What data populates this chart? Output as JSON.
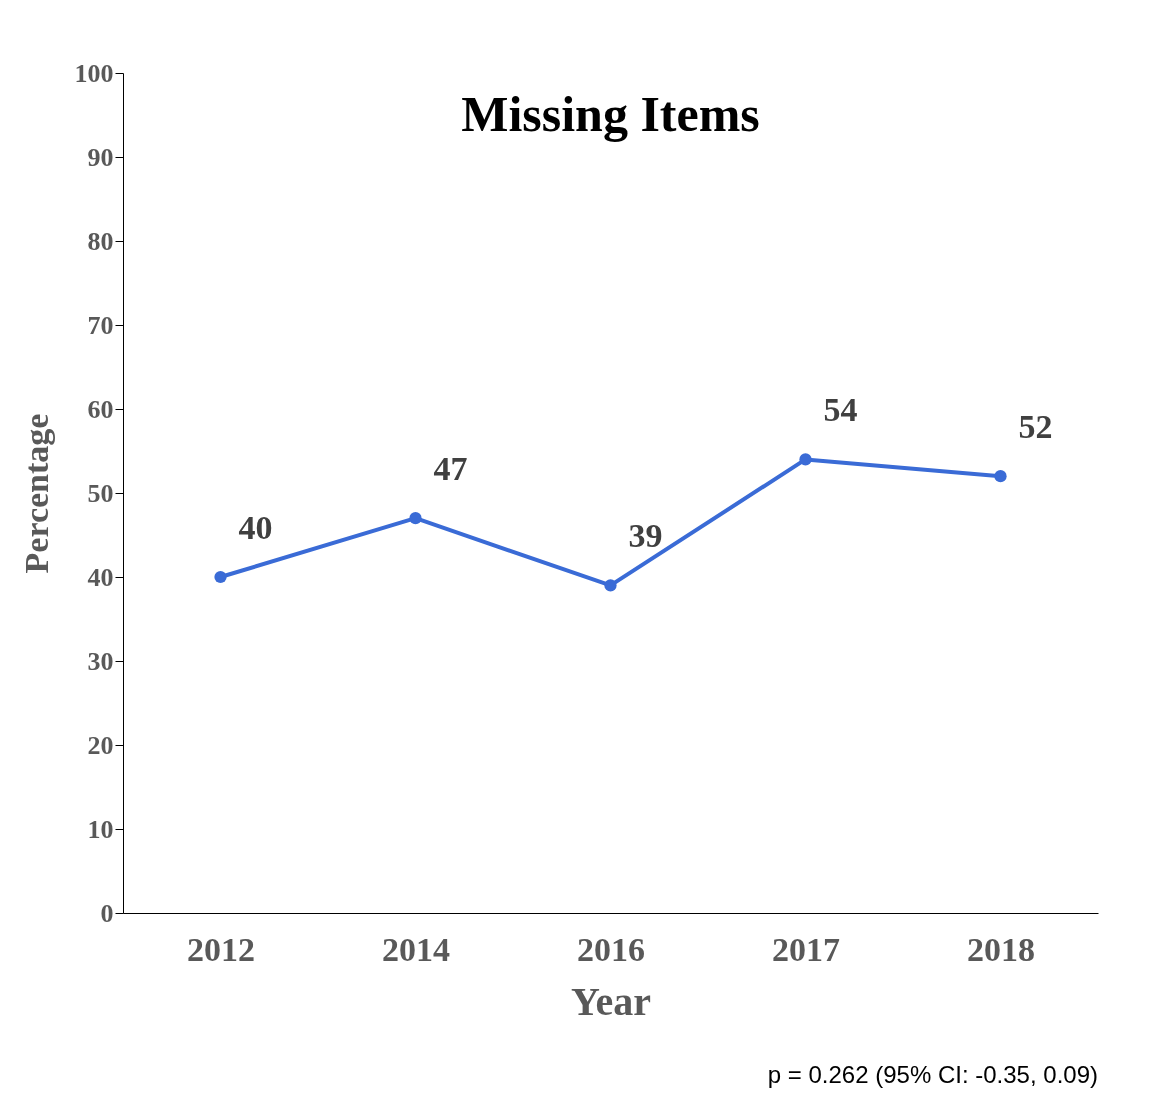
{
  "chart_data": {
    "type": "line",
    "title": "Missing Items",
    "xlabel": "Year",
    "ylabel": "Percentage",
    "categories": [
      "2012",
      "2014",
      "2016",
      "2017",
      "2018"
    ],
    "series": [
      {
        "color": "#3a6bd6",
        "values": [
          40,
          47,
          39,
          54,
          52
        ]
      }
    ],
    "ylim": [
      0,
      100
    ],
    "yticks": [
      0,
      10,
      20,
      30,
      40,
      50,
      60,
      70,
      80,
      90,
      100
    ],
    "grid": false,
    "marker": "circle",
    "line_style": "solid",
    "data_labels": true,
    "annotations": [
      "p = 0.262 (95% CI: -0.35, 0.09)"
    ]
  }
}
